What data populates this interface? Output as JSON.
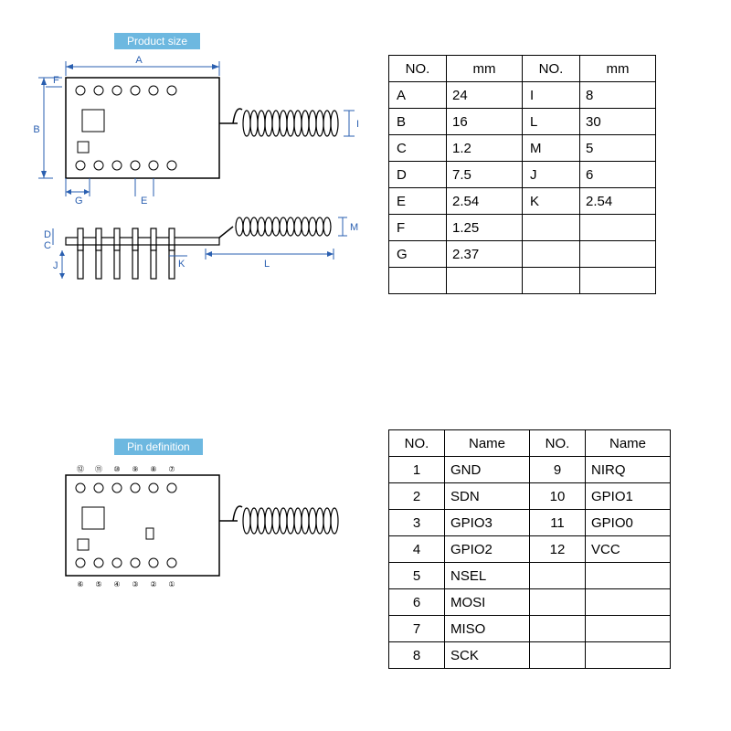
{
  "titles": {
    "product_size": "Product size",
    "pin_definition": "Pin definition"
  },
  "size_table": {
    "headers": [
      "NO.",
      "mm",
      "NO.",
      "mm"
    ],
    "rows": [
      [
        "A",
        "24",
        "I",
        "8"
      ],
      [
        "B",
        "16",
        "L",
        "30"
      ],
      [
        "C",
        "1.2",
        "M",
        "5"
      ],
      [
        "D",
        "7.5",
        "J",
        "6"
      ],
      [
        "E",
        "2.54",
        "K",
        "2.54"
      ],
      [
        "F",
        "1.25",
        "",
        ""
      ],
      [
        "G",
        "2.37",
        "",
        ""
      ],
      [
        "",
        "",
        "",
        ""
      ]
    ]
  },
  "pin_table": {
    "headers": [
      "NO.",
      "Name",
      "NO.",
      "Name"
    ],
    "rows": [
      [
        "1",
        "GND",
        "9",
        "NIRQ"
      ],
      [
        "2",
        "SDN",
        "10",
        "GPIO1"
      ],
      [
        "3",
        "GPIO3",
        "11",
        "GPIO0"
      ],
      [
        "4",
        "GPIO2",
        "12",
        "VCC"
      ],
      [
        "5",
        "NSEL",
        "",
        ""
      ],
      [
        "6",
        "MOSI",
        "",
        ""
      ],
      [
        "7",
        "MISO",
        "",
        ""
      ],
      [
        "8",
        "SCK",
        "",
        ""
      ]
    ]
  },
  "dim_labels": {
    "A": "A",
    "B": "B",
    "C": "C",
    "D": "D",
    "E": "E",
    "F": "F",
    "G": "G",
    "I": "I",
    "J": "J",
    "K": "K",
    "L": "L",
    "M": "M"
  },
  "pin_numbers_top": [
    "⑫",
    "⑪",
    "⑩",
    "⑨",
    "⑧",
    "⑦"
  ],
  "pin_numbers_bot": [
    "⑥",
    "⑤",
    "④",
    "③",
    "②",
    "①"
  ],
  "colors": {
    "title_bg": "#6db8e0",
    "title_text": "#ffffff",
    "dim_line": "#2a5fb0",
    "outline": "#000000"
  }
}
